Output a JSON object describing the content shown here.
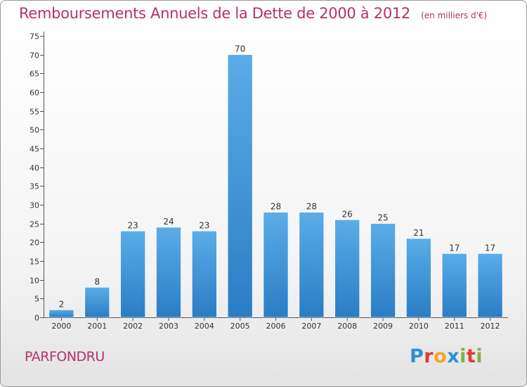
{
  "header": {
    "title": "Remboursements Annuels de la Dette de 2000 à 2012",
    "subtitle": "(en milliers d'€)"
  },
  "footer": {
    "commune": "PARFONDRU",
    "logo": {
      "text": "Proxiti",
      "colors": [
        "#2d8fd6",
        "#e53935",
        "#f5a623",
        "#2d8fd6",
        "#7cb342",
        "#e53935",
        "#7cb342"
      ]
    }
  },
  "chart_data": {
    "type": "bar",
    "title": "Remboursements Annuels de la Dette de 2000 à 2012",
    "subtitle": "(en milliers d'€)",
    "xlabel": "",
    "ylabel": "",
    "categories": [
      "2000",
      "2001",
      "2002",
      "2003",
      "2004",
      "2005",
      "2006",
      "2007",
      "2008",
      "2009",
      "2010",
      "2011",
      "2012"
    ],
    "values": [
      2,
      8,
      23,
      24,
      23,
      70,
      28,
      28,
      26,
      25,
      21,
      17,
      17
    ],
    "ylim": [
      0,
      75
    ],
    "yticks": [
      0,
      5,
      10,
      15,
      20,
      25,
      30,
      35,
      40,
      45,
      50,
      55,
      60,
      65,
      70,
      75
    ],
    "grid": false,
    "bar_color": "#4a9de0",
    "title_color": "#b5316e"
  }
}
